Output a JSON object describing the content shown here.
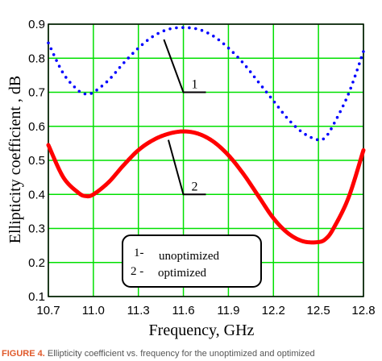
{
  "chart_data": {
    "type": "line",
    "xlabel": "Frequency, GHz",
    "ylabel": "Ellipticity coefficient , dB",
    "xlim": [
      10.7,
      12.8
    ],
    "ylim": [
      0.1,
      0.9
    ],
    "xticks": [
      "10.7",
      "11.0",
      "11.3",
      "11.6",
      "11.9",
      "12.2",
      "12.5",
      "12.8"
    ],
    "yticks": [
      "0.1",
      "0.2",
      "0.3",
      "0.4",
      "0.5",
      "0.6",
      "0.7",
      "0.8",
      "0.9"
    ],
    "grid": true,
    "grid_color": "#00e000",
    "series": [
      {
        "label": "1",
        "style": "dotted",
        "color": "#0000ff",
        "x": [
          10.7,
          10.8,
          10.9,
          10.95,
          11.0,
          11.1,
          11.2,
          11.3,
          11.4,
          11.5,
          11.6,
          11.7,
          11.8,
          11.9,
          12.0,
          12.1,
          12.2,
          12.3,
          12.4,
          12.5,
          12.55,
          12.6,
          12.7,
          12.8
        ],
        "y": [
          0.845,
          0.755,
          0.705,
          0.695,
          0.7,
          0.735,
          0.785,
          0.83,
          0.865,
          0.885,
          0.89,
          0.885,
          0.865,
          0.83,
          0.785,
          0.73,
          0.675,
          0.62,
          0.58,
          0.56,
          0.57,
          0.605,
          0.695,
          0.82
        ]
      },
      {
        "label": "2",
        "style": "solid",
        "color": "#ff0000",
        "x": [
          10.7,
          10.8,
          10.9,
          10.95,
          11.0,
          11.1,
          11.2,
          11.3,
          11.4,
          11.5,
          11.6,
          11.7,
          11.8,
          11.9,
          12.0,
          12.1,
          12.2,
          12.3,
          12.4,
          12.5,
          12.55,
          12.6,
          12.7,
          12.8
        ],
        "y": [
          0.545,
          0.45,
          0.405,
          0.395,
          0.4,
          0.435,
          0.485,
          0.53,
          0.56,
          0.578,
          0.585,
          0.578,
          0.555,
          0.515,
          0.46,
          0.395,
          0.33,
          0.285,
          0.262,
          0.26,
          0.27,
          0.3,
          0.39,
          0.53
        ]
      }
    ],
    "annotations": [
      {
        "text": "1",
        "point": [
          11.47,
          0.855
        ],
        "label_at": [
          11.75,
          0.7
        ]
      },
      {
        "text": "2",
        "point": [
          11.5,
          0.56
        ],
        "label_at": [
          11.75,
          0.4
        ]
      }
    ],
    "legend": {
      "placement": "bottom-center",
      "entries": [
        {
          "marker": "1-",
          "text": "unoptimized"
        },
        {
          "marker": "2 -",
          "text": "optimized"
        }
      ]
    }
  },
  "caption": {
    "label": "FIGURE 4.",
    "text": "Ellipticity coefficient vs. frequency for the unoptimized and optimized"
  }
}
